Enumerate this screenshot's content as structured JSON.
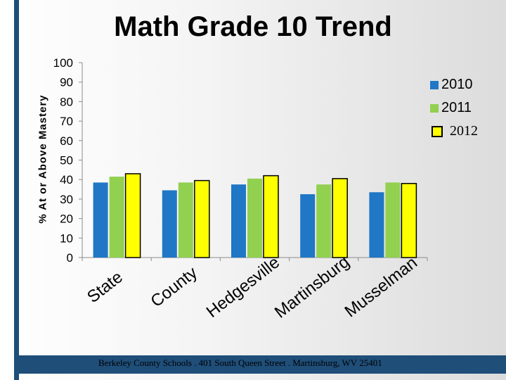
{
  "chart_data": {
    "type": "bar",
    "title": "Math Grade 10 Trend",
    "ylabel": "% At or Above Mastery",
    "xlabel": "",
    "ylim": [
      0,
      100
    ],
    "yticks": [
      0,
      10,
      20,
      30,
      40,
      50,
      60,
      70,
      80,
      90,
      100
    ],
    "categories": [
      "State",
      "County",
      "Hedgesville",
      "Martinsburg",
      "Musselman"
    ],
    "series": [
      {
        "name": "2010",
        "color": "#1f77c6",
        "values": [
          38.5,
          34.5,
          37.5,
          32.5,
          33.5
        ]
      },
      {
        "name": "2011",
        "color": "#92d050",
        "values": [
          41.5,
          38.5,
          40.5,
          37.5,
          38.5
        ]
      },
      {
        "name": "2012",
        "color": "#ffff00",
        "values": [
          43.0,
          39.5,
          42.0,
          40.5,
          38.0
        ]
      }
    ],
    "legend_position": "right",
    "grid": false
  },
  "footer": {
    "text": "Berkeley County Schools . 401 South Queen Street . Martinsburg, WV  25401"
  }
}
